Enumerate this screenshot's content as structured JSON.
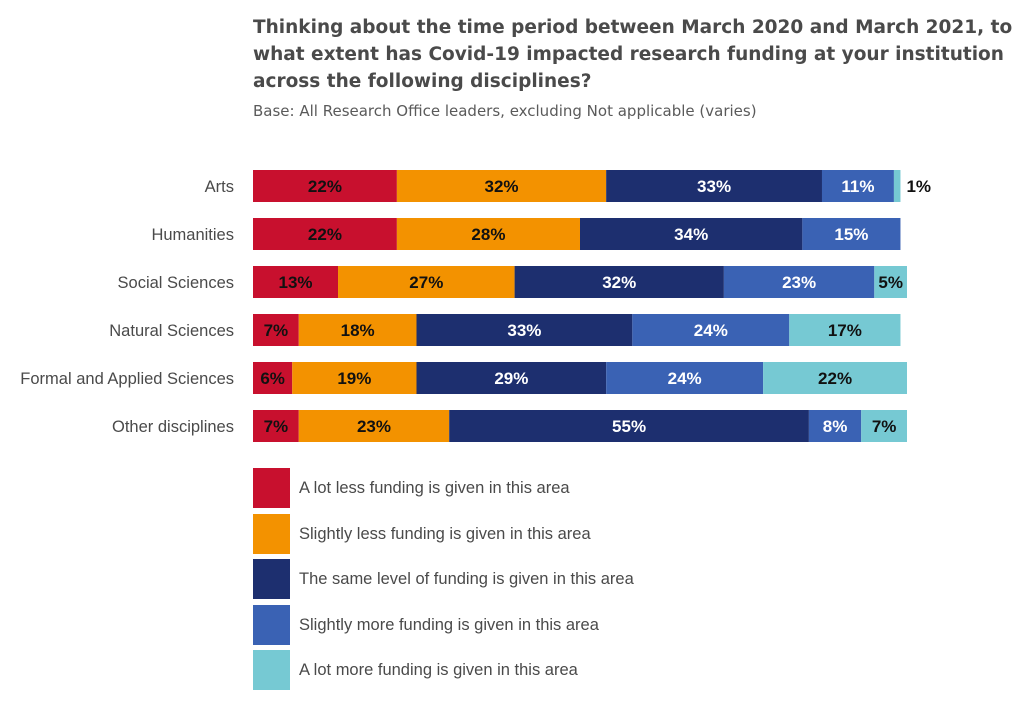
{
  "chart_data": {
    "type": "bar",
    "orientation": "horizontal",
    "stacked": true,
    "title": "Thinking about the time period between March 2020 and March 2021, to what extent has Covid-19 impacted research funding at your institution across the following disciplines?",
    "subtitle": "Base: All Research Office leaders, excluding Not applicable (varies)",
    "categories": [
      "Arts",
      "Humanities",
      "Social Sciences",
      "Natural Sciences",
      "Formal and Applied Sciences",
      "Other disciplines"
    ],
    "series": [
      {
        "name": "A lot less funding is given in this area",
        "color": "#c8102e",
        "values": [
          22,
          22,
          13,
          7,
          6,
          7
        ]
      },
      {
        "name": "Slightly less funding is given in this area",
        "color": "#f39200",
        "values": [
          32,
          28,
          27,
          18,
          19,
          23
        ]
      },
      {
        "name": "The same level of funding is given in this area",
        "color": "#1d2f6f",
        "values": [
          33,
          34,
          32,
          33,
          29,
          55
        ]
      },
      {
        "name": "Slightly more funding is given in this area",
        "color": "#3a62b4",
        "values": [
          11,
          15,
          23,
          24,
          24,
          8
        ]
      },
      {
        "name": "A lot more funding is given in this area",
        "color": "#76c9d3",
        "values": [
          1,
          0,
          5,
          17,
          22,
          7
        ]
      }
    ],
    "value_suffix": "%",
    "xlim": [
      0,
      100
    ],
    "grid": false,
    "legend_position": "bottom-left"
  }
}
